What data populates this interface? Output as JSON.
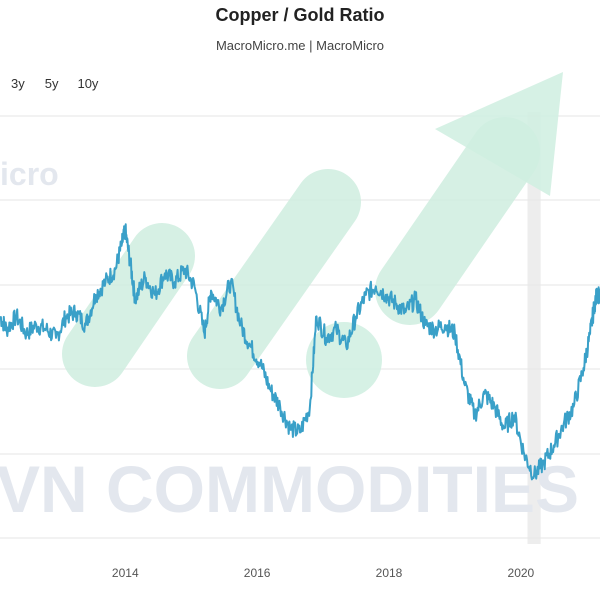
{
  "header": {
    "title": "Copper / Gold Ratio",
    "subtitle": "MacroMicro.me | MacroMicro"
  },
  "range_selector": [
    "3y",
    "5y",
    "10y"
  ],
  "watermarks": {
    "logo_text": "icro",
    "banner_text": "VN COMMODITIES"
  },
  "colors": {
    "series_line": "#3aa0c8",
    "watermark_green": "#cfeee0",
    "watermark_text": "#e3e7ee",
    "grid": "#e6e6e6",
    "highlight_band": "#e9e9e9"
  },
  "chart_data": {
    "type": "line",
    "title": "Copper / Gold Ratio",
    "subtitle": "MacroMicro.me | MacroMicro",
    "x_tick_labels": [
      "2014",
      "2016",
      "2018",
      "2020"
    ],
    "xlim": [
      2012.1,
      2021.2
    ],
    "y_tick_labels": [],
    "ylim": [
      0,
      100
    ],
    "highlight_band": [
      2020.1,
      2020.3
    ],
    "grid": "horizontal",
    "series": [
      {
        "values": [
          [
            2012.1,
            52
          ],
          [
            2012.2,
            49
          ],
          [
            2012.35,
            52
          ],
          [
            2012.5,
            48
          ],
          [
            2012.65,
            50
          ],
          [
            2012.8,
            49
          ],
          [
            2012.95,
            47
          ],
          [
            2013.1,
            52
          ],
          [
            2013.25,
            53
          ],
          [
            2013.4,
            50
          ],
          [
            2013.55,
            57
          ],
          [
            2013.7,
            60
          ],
          [
            2013.85,
            63
          ],
          [
            2013.95,
            69
          ],
          [
            2014.0,
            72
          ],
          [
            2014.08,
            64
          ],
          [
            2014.15,
            56
          ],
          [
            2014.3,
            61
          ],
          [
            2014.45,
            57
          ],
          [
            2014.6,
            62
          ],
          [
            2014.75,
            60
          ],
          [
            2014.9,
            63
          ],
          [
            2015.05,
            59
          ],
          [
            2015.2,
            48
          ],
          [
            2015.3,
            58
          ],
          [
            2015.45,
            54
          ],
          [
            2015.6,
            60
          ],
          [
            2015.75,
            50
          ],
          [
            2015.9,
            45
          ],
          [
            2016.05,
            41
          ],
          [
            2016.2,
            35
          ],
          [
            2016.35,
            31
          ],
          [
            2016.5,
            26
          ],
          [
            2016.65,
            25
          ],
          [
            2016.8,
            31
          ],
          [
            2016.9,
            52
          ],
          [
            2017.05,
            47
          ],
          [
            2017.2,
            49
          ],
          [
            2017.35,
            45
          ],
          [
            2017.5,
            52
          ],
          [
            2017.65,
            57
          ],
          [
            2017.8,
            59
          ],
          [
            2017.95,
            57
          ],
          [
            2018.1,
            55
          ],
          [
            2018.25,
            53
          ],
          [
            2018.4,
            56
          ],
          [
            2018.55,
            50
          ],
          [
            2018.7,
            49
          ],
          [
            2018.85,
            50
          ],
          [
            2019.0,
            48
          ],
          [
            2019.15,
            36
          ],
          [
            2019.3,
            29
          ],
          [
            2019.45,
            34
          ],
          [
            2019.6,
            31
          ],
          [
            2019.75,
            26
          ],
          [
            2019.9,
            29
          ],
          [
            2020.05,
            20
          ],
          [
            2020.2,
            15
          ],
          [
            2020.35,
            18
          ],
          [
            2020.5,
            22
          ],
          [
            2020.65,
            27
          ],
          [
            2020.8,
            31
          ],
          [
            2020.95,
            40
          ],
          [
            2021.05,
            48
          ],
          [
            2021.12,
            55
          ],
          [
            2021.17,
            58
          ],
          [
            2021.2,
            55
          ]
        ]
      }
    ]
  }
}
